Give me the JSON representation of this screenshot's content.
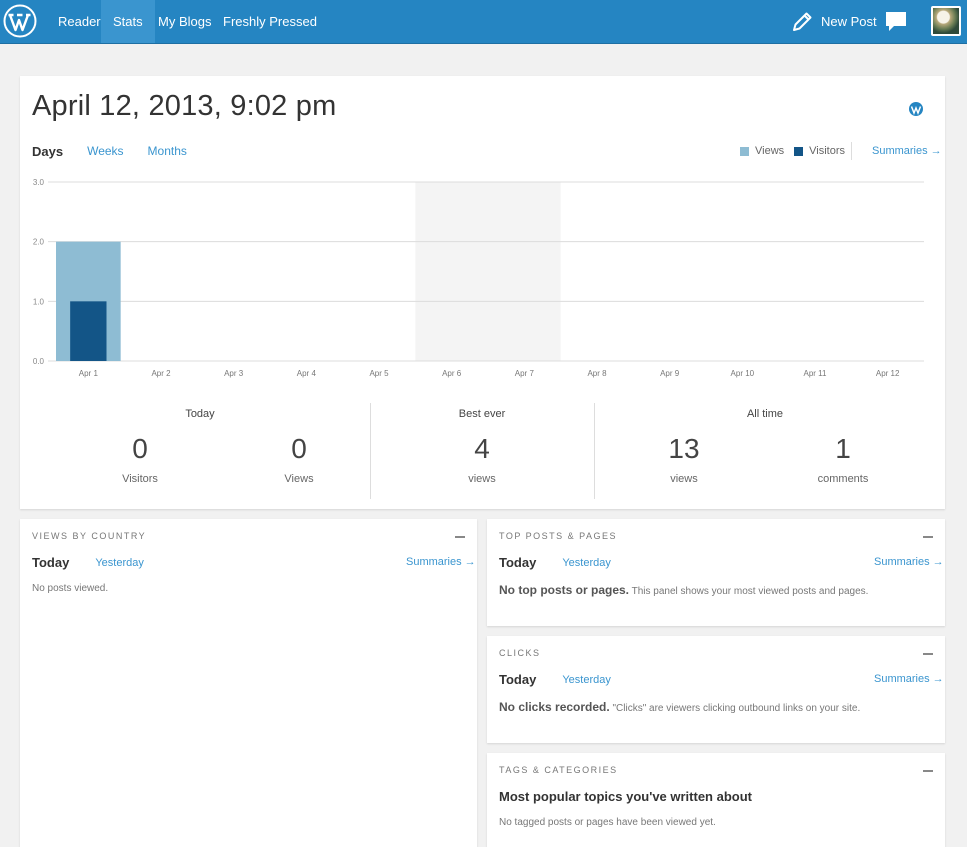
{
  "topbar": {
    "nav": [
      "Reader",
      "Stats",
      "My Blogs",
      "Freshly Pressed"
    ],
    "active": "Stats",
    "new_post": "New Post"
  },
  "main": {
    "date_title": "April 12, 2013, 9:02 pm",
    "tabs": {
      "days": "Days",
      "weeks": "Weeks",
      "months": "Months"
    },
    "legend": {
      "views": "Views",
      "visitors": "Visitors"
    },
    "summaries": "Summaries →"
  },
  "chart_data": {
    "type": "bar",
    "categories": [
      "Apr 1",
      "Apr 2",
      "Apr 3",
      "Apr 4",
      "Apr 5",
      "Apr 6",
      "Apr 7",
      "Apr 8",
      "Apr 9",
      "Apr 10",
      "Apr 11",
      "Apr 12"
    ],
    "series": [
      {
        "name": "Views",
        "values": [
          2,
          0,
          0,
          0,
          0,
          0,
          0,
          0,
          0,
          0,
          0,
          0
        ],
        "color": "#8ebcd3"
      },
      {
        "name": "Visitors",
        "values": [
          1,
          0,
          0,
          0,
          0,
          0,
          0,
          0,
          0,
          0,
          0,
          0
        ],
        "color": "#135587"
      }
    ],
    "yticks": [
      "0.0",
      "1.0",
      "2.0",
      "3.0"
    ],
    "ylim": [
      0,
      3
    ],
    "highlighted": [
      "Apr 6",
      "Apr 7"
    ],
    "grid": true
  },
  "stats": {
    "today": {
      "title": "Today",
      "visitors": "0",
      "visitors_label": "Visitors",
      "views": "0",
      "views_label": "Views"
    },
    "best": {
      "title": "Best ever",
      "views": "4",
      "views_label": "views"
    },
    "alltime": {
      "title": "All time",
      "views": "13",
      "views_label": "views",
      "comments": "1",
      "comments_label": "comments"
    }
  },
  "panels": {
    "country": {
      "title": "Views by Country",
      "today": "Today",
      "yesterday": "Yesterday",
      "summaries": "Summaries →",
      "message": "No posts viewed."
    },
    "top_posts": {
      "title": "Top Posts & Pages",
      "today": "Today",
      "yesterday": "Yesterday",
      "summaries": "Summaries →",
      "message_bold": "No top posts or pages.",
      "message": " This panel shows your most viewed posts and pages."
    },
    "clicks": {
      "title": "Clicks",
      "today": "Today",
      "yesterday": "Yesterday",
      "summaries": "Summaries →",
      "message_bold": "No clicks recorded.",
      "message": " \"Clicks\" are viewers clicking outbound links on your site."
    },
    "tags": {
      "title": "Tags & Categories",
      "heading": "Most popular topics you've written about",
      "message": "No tagged posts or pages have been viewed yet."
    }
  }
}
